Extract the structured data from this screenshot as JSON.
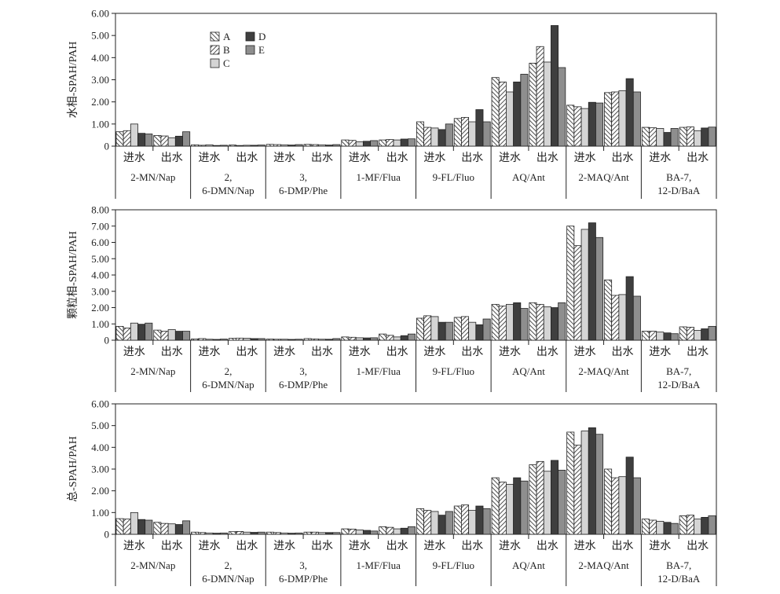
{
  "colors": {
    "A": "#ffffff",
    "B": "#ffffff",
    "C": "#d4d4d4",
    "D": "#3f3f3f",
    "E": "#8e8e8e",
    "stroke": "#222222"
  },
  "chart_data": [
    {
      "type": "bar",
      "ylabel": "水相-SPAH/PAH",
      "ylim": [
        0,
        6
      ],
      "yticks": [
        "0",
        "1.00",
        "2.00",
        "3.00",
        "4.00",
        "5.00",
        "6.00"
      ],
      "legend": [
        "A",
        "B",
        "C",
        "D",
        "E"
      ],
      "legend_position": "top-left",
      "groups": [
        "2-MN/Nap",
        "2, 6-DMN/Nap",
        "3, 6-DMP/Phe",
        "1-MF/Flua",
        "9-FL/Fluo",
        "AQ/Ant",
        "2-MAQ/Ant",
        "BA-7, 12-D/BaA"
      ],
      "subcategories": [
        "进水",
        "出水"
      ],
      "series": [
        {
          "name": "A",
          "values": [
            0.65,
            0.48,
            0.06,
            0.05,
            0.08,
            0.08,
            0.28,
            0.28,
            1.1,
            1.25,
            3.1,
            3.75,
            1.85,
            2.42,
            0.85,
            0.85
          ]
        },
        {
          "name": "B",
          "values": [
            0.7,
            0.46,
            0.04,
            0.03,
            0.07,
            0.07,
            0.26,
            0.3,
            0.85,
            1.3,
            2.9,
            4.5,
            1.78,
            2.45,
            0.83,
            0.87
          ]
        },
        {
          "name": "C",
          "values": [
            1.0,
            0.38,
            0.06,
            0.04,
            0.06,
            0.06,
            0.2,
            0.28,
            0.82,
            1.1,
            2.45,
            3.8,
            1.7,
            2.5,
            0.8,
            0.7
          ]
        },
        {
          "name": "D",
          "values": [
            0.58,
            0.45,
            0.03,
            0.04,
            0.05,
            0.05,
            0.22,
            0.32,
            0.75,
            1.65,
            2.9,
            5.45,
            1.98,
            3.05,
            0.62,
            0.82
          ]
        },
        {
          "name": "E",
          "values": [
            0.55,
            0.65,
            0.04,
            0.05,
            0.07,
            0.07,
            0.25,
            0.33,
            1.0,
            1.1,
            3.25,
            3.55,
            1.95,
            2.45,
            0.8,
            0.86
          ]
        }
      ]
    },
    {
      "type": "bar",
      "ylabel": "颗粒相-SPAH/PAH",
      "ylim": [
        0,
        8
      ],
      "yticks": [
        "0",
        "1.00",
        "2.00",
        "3.00",
        "4.00",
        "5.00",
        "6.00",
        "7.00",
        "8.00"
      ],
      "legend": [
        "A",
        "B",
        "C",
        "D",
        "E"
      ],
      "groups": [
        "2-MN/Nap",
        "2, 6-DMN/Nap",
        "3, 6-DMP/Phe",
        "1-MF/Flua",
        "9-FL/Fluo",
        "AQ/Ant",
        "2-MAQ/Ant",
        "BA-7, 12-D/BaA"
      ],
      "subcategories": [
        "进水",
        "出水"
      ],
      "series": [
        {
          "name": "A",
          "values": [
            0.85,
            0.62,
            0.08,
            0.12,
            0.07,
            0.1,
            0.2,
            0.38,
            1.35,
            1.4,
            2.2,
            2.3,
            7.0,
            3.7,
            0.55,
            0.82
          ]
        },
        {
          "name": "B",
          "values": [
            0.75,
            0.55,
            0.1,
            0.13,
            0.06,
            0.08,
            0.18,
            0.3,
            1.5,
            1.45,
            2.1,
            2.2,
            5.8,
            2.75,
            0.55,
            0.8
          ]
        },
        {
          "name": "C",
          "values": [
            1.05,
            0.65,
            0.06,
            0.12,
            0.06,
            0.06,
            0.15,
            0.2,
            1.45,
            1.1,
            2.2,
            2.05,
            6.8,
            2.8,
            0.5,
            0.6
          ]
        },
        {
          "name": "D",
          "values": [
            0.98,
            0.55,
            0.05,
            0.1,
            0.05,
            0.06,
            0.14,
            0.28,
            1.1,
            0.95,
            2.3,
            2.0,
            7.2,
            3.9,
            0.45,
            0.7
          ]
        },
        {
          "name": "E",
          "values": [
            1.05,
            0.55,
            0.07,
            0.1,
            0.06,
            0.1,
            0.15,
            0.38,
            1.1,
            1.3,
            1.95,
            2.3,
            6.3,
            2.7,
            0.4,
            0.85
          ]
        }
      ]
    },
    {
      "type": "bar",
      "ylabel": "总-SPAH/PAH",
      "ylim": [
        0,
        6
      ],
      "yticks": [
        "0",
        "1.00",
        "2.00",
        "3.00",
        "4.00",
        "5.00",
        "6.00"
      ],
      "legend": [
        "A",
        "B",
        "C",
        "D",
        "E"
      ],
      "groups": [
        "2-MN/Nap",
        "2, 6-DMN/Nap",
        "3, 6-DMP/Phe",
        "1-MF/Flua",
        "9-FL/Fluo",
        "AQ/Ant",
        "2-MAQ/Ant",
        "BA-7, 12-D/BaA"
      ],
      "subcategories": [
        "进水",
        "出水"
      ],
      "series": [
        {
          "name": "A",
          "values": [
            0.72,
            0.55,
            0.1,
            0.12,
            0.1,
            0.1,
            0.25,
            0.35,
            1.18,
            1.3,
            2.6,
            3.2,
            4.7,
            3.0,
            0.7,
            0.85
          ]
        },
        {
          "name": "B",
          "values": [
            0.7,
            0.5,
            0.08,
            0.13,
            0.08,
            0.1,
            0.24,
            0.32,
            1.1,
            1.35,
            2.4,
            3.35,
            4.1,
            2.6,
            0.65,
            0.88
          ]
        },
        {
          "name": "C",
          "values": [
            1.0,
            0.48,
            0.06,
            0.1,
            0.06,
            0.08,
            0.2,
            0.25,
            1.05,
            1.1,
            2.3,
            2.9,
            4.75,
            2.65,
            0.6,
            0.7
          ]
        },
        {
          "name": "D",
          "values": [
            0.68,
            0.45,
            0.05,
            0.09,
            0.05,
            0.08,
            0.18,
            0.28,
            0.88,
            1.3,
            2.6,
            3.4,
            4.9,
            3.55,
            0.55,
            0.78
          ]
        },
        {
          "name": "E",
          "values": [
            0.65,
            0.62,
            0.06,
            0.1,
            0.06,
            0.08,
            0.15,
            0.35,
            1.05,
            1.18,
            2.45,
            2.95,
            4.6,
            2.6,
            0.5,
            0.85
          ]
        }
      ]
    }
  ]
}
